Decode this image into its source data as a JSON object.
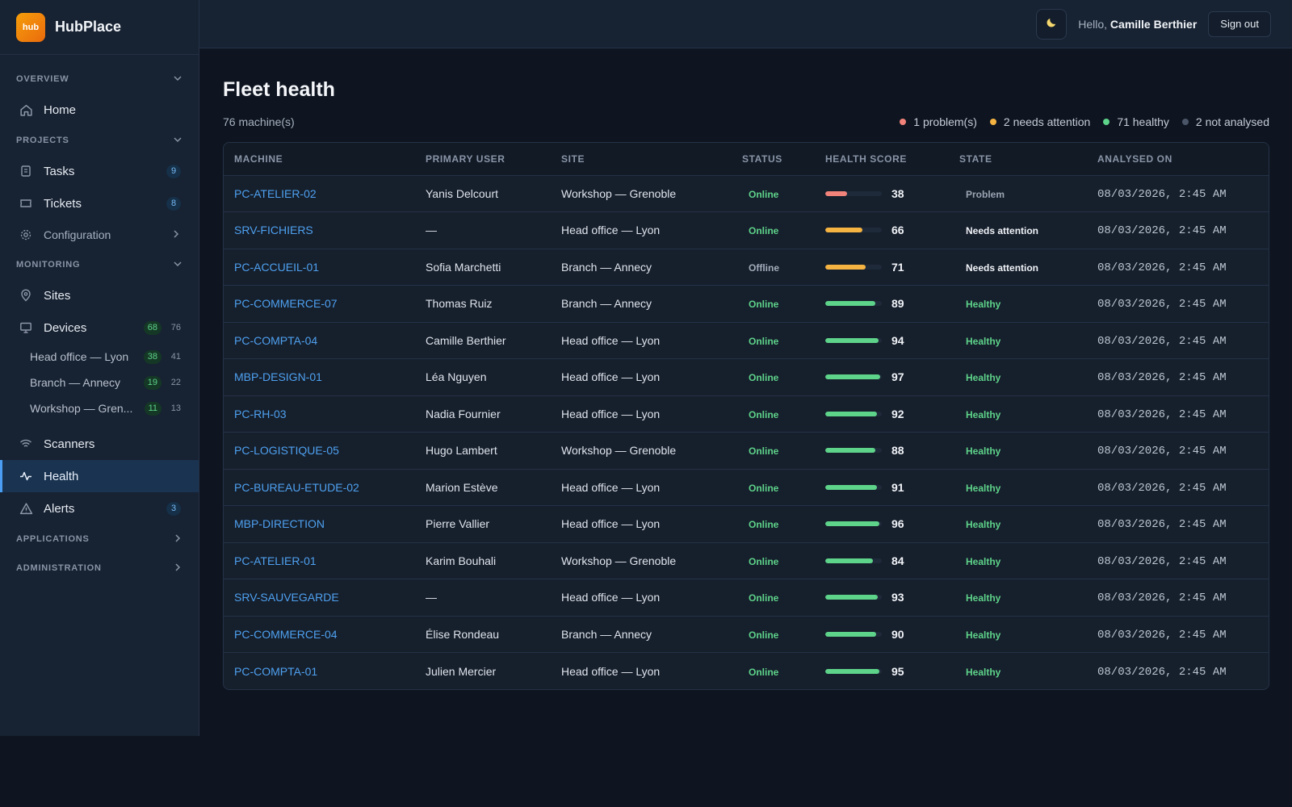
{
  "brand": {
    "logo_text": "hub",
    "name": "HubPlace"
  },
  "header": {
    "theme_icon": "moon-icon",
    "greeting_prefix": "Hello, ",
    "user_name": "Camille Berthier",
    "signout_label": "Sign out"
  },
  "sidebar": {
    "overview": {
      "label": "OVERVIEW",
      "home": "Home"
    },
    "projects": {
      "label": "PROJECTS",
      "tasks": "Tasks",
      "tasks_badge": "9",
      "tickets": "Tickets",
      "tickets_badge": "8",
      "configuration": "Configuration"
    },
    "monitoring": {
      "label": "MONITORING",
      "sites": "Sites",
      "devices": "Devices",
      "devices_badge": "68",
      "devices_count": "76",
      "sub": [
        {
          "label": "Head office — Lyon",
          "badge": "38",
          "count": "41"
        },
        {
          "label": "Branch — Annecy",
          "badge": "19",
          "count": "22"
        },
        {
          "label": "Workshop — Gren...",
          "badge": "11",
          "count": "13"
        }
      ],
      "scanners": "Scanners",
      "health": "Health",
      "alerts": "Alerts",
      "alerts_badge": "3"
    },
    "applications": {
      "label": "APPLICATIONS"
    },
    "administration": {
      "label": "ADMINISTRATION"
    }
  },
  "main": {
    "title": "Fleet health",
    "machine_count": "76 machine(s)",
    "legend": [
      {
        "label": "1 problem(s)",
        "color": "#f2837a"
      },
      {
        "label": "2 needs attention",
        "color": "#f5b342"
      },
      {
        "label": "71 healthy",
        "color": "#5ed38a"
      },
      {
        "label": "2 not analysed",
        "color": "#4a5668"
      }
    ],
    "columns": [
      "MACHINE",
      "PRIMARY USER",
      "SITE",
      "STATUS",
      "HEALTH SCORE",
      "STATE",
      "ANALYSED ON"
    ],
    "rows": [
      {
        "machine": "PC-ATELIER-02",
        "user": "Yanis Delcourt",
        "site": "Workshop — Grenoble",
        "status": "Online",
        "score": 38,
        "state": "Problem",
        "date": "08/03/2026, 2:45 AM"
      },
      {
        "machine": "SRV-FICHIERS",
        "user": "—",
        "site": "Head office — Lyon",
        "status": "Online",
        "score": 66,
        "state": "Needs attention",
        "date": "08/03/2026, 2:45 AM"
      },
      {
        "machine": "PC-ACCUEIL-01",
        "user": "Sofia Marchetti",
        "site": "Branch — Annecy",
        "status": "Offline",
        "score": 71,
        "state": "Needs attention",
        "date": "08/03/2026, 2:45 AM"
      },
      {
        "machine": "PC-COMMERCE-07",
        "user": "Thomas Ruiz",
        "site": "Branch — Annecy",
        "status": "Online",
        "score": 89,
        "state": "Healthy",
        "date": "08/03/2026, 2:45 AM"
      },
      {
        "machine": "PC-COMPTA-04",
        "user": "Camille Berthier",
        "site": "Head office — Lyon",
        "status": "Online",
        "score": 94,
        "state": "Healthy",
        "date": "08/03/2026, 2:45 AM"
      },
      {
        "machine": "MBP-DESIGN-01",
        "user": "Léa Nguyen",
        "site": "Head office — Lyon",
        "status": "Online",
        "score": 97,
        "state": "Healthy",
        "date": "08/03/2026, 2:45 AM"
      },
      {
        "machine": "PC-RH-03",
        "user": "Nadia Fournier",
        "site": "Head office — Lyon",
        "status": "Online",
        "score": 92,
        "state": "Healthy",
        "date": "08/03/2026, 2:45 AM"
      },
      {
        "machine": "PC-LOGISTIQUE-05",
        "user": "Hugo Lambert",
        "site": "Workshop — Grenoble",
        "status": "Online",
        "score": 88,
        "state": "Healthy",
        "date": "08/03/2026, 2:45 AM"
      },
      {
        "machine": "PC-BUREAU-ETUDE-02",
        "user": "Marion Estève",
        "site": "Head office — Lyon",
        "status": "Online",
        "score": 91,
        "state": "Healthy",
        "date": "08/03/2026, 2:45 AM"
      },
      {
        "machine": "MBP-DIRECTION",
        "user": "Pierre Vallier",
        "site": "Head office — Lyon",
        "status": "Online",
        "score": 96,
        "state": "Healthy",
        "date": "08/03/2026, 2:45 AM"
      },
      {
        "machine": "PC-ATELIER-01",
        "user": "Karim Bouhali",
        "site": "Workshop — Grenoble",
        "status": "Online",
        "score": 84,
        "state": "Healthy",
        "date": "08/03/2026, 2:45 AM"
      },
      {
        "machine": "SRV-SAUVEGARDE",
        "user": "—",
        "site": "Head office — Lyon",
        "status": "Online",
        "score": 93,
        "state": "Healthy",
        "date": "08/03/2026, 2:45 AM"
      },
      {
        "machine": "PC-COMMERCE-04",
        "user": "Élise Rondeau",
        "site": "Branch — Annecy",
        "status": "Online",
        "score": 90,
        "state": "Healthy",
        "date": "08/03/2026, 2:45 AM"
      },
      {
        "machine": "PC-COMPTA-01",
        "user": "Julien Mercier",
        "site": "Head office — Lyon",
        "status": "Online",
        "score": 95,
        "state": "Healthy",
        "date": "08/03/2026, 2:45 AM"
      }
    ]
  },
  "colors": {
    "problem": "#f2837a",
    "attention": "#f5b342",
    "healthy": "#5ed38a",
    "accent": "#4ea1f0"
  }
}
